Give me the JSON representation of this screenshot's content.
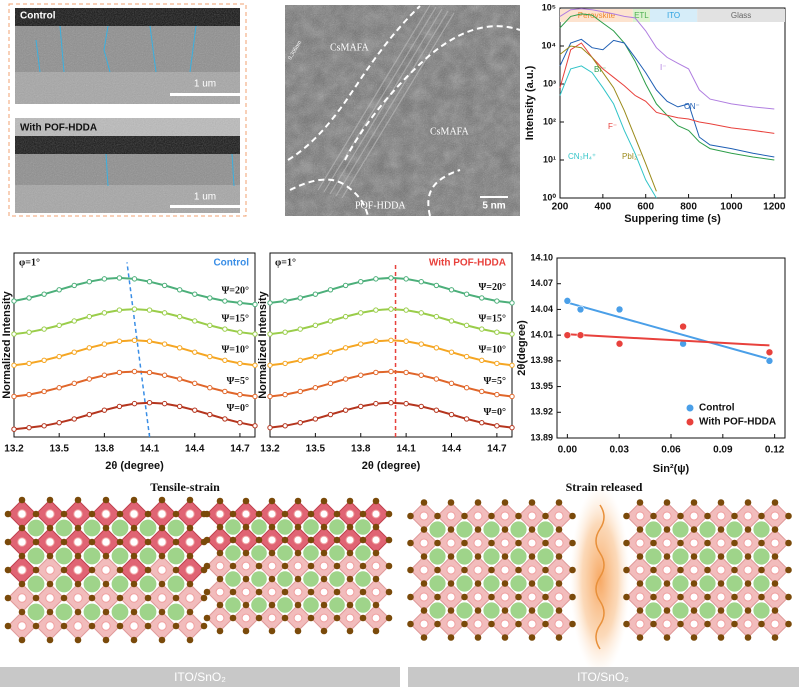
{
  "sem": {
    "top_label": "Control",
    "top_scale": "1 um",
    "bottom_label": "With POF-HDDA",
    "bottom_scale": "1 um"
  },
  "tem": {
    "labels": [
      "CsMAFA",
      "CsMAFA",
      "POF-HDDA"
    ],
    "d_spacing": "0.306nm",
    "scale": "5 nm"
  },
  "chart_data": [
    {
      "type": "line",
      "log_y": true,
      "xlabel": "Suppering time (s)",
      "ylabel": "Intensity (a.u.)",
      "regions": [
        {
          "name": "Perovskite",
          "start": 200,
          "end": 540,
          "color": "#f08a30",
          "background": "#fde3cf"
        },
        {
          "name": "ETL",
          "start": 540,
          "end": 620,
          "color": "#4caf50",
          "background": "#dcf2cf"
        },
        {
          "name": "ITO",
          "start": 620,
          "end": 840,
          "color": "#2aa0e0",
          "background": "#d6edf9"
        },
        {
          "name": "Glass",
          "start": 840,
          "end": 1250,
          "color": "#666666",
          "background": "#e2e2e2"
        }
      ],
      "x": [
        200,
        250,
        300,
        350,
        400,
        450,
        500,
        550,
        600,
        650,
        700,
        750,
        800,
        850,
        900,
        1000,
        1100,
        1200
      ],
      "series": [
        {
          "name": "I⁻",
          "color": "#b07ee0",
          "values": [
            60000,
            90000,
            95000,
            90000,
            80000,
            70000,
            60000,
            55000,
            25000,
            9000,
            5000,
            3500,
            2500,
            700,
            400,
            300,
            250,
            220
          ]
        },
        {
          "name": "Br⁻",
          "color": "#2e9e4a",
          "values": [
            30000,
            60000,
            70000,
            65000,
            40000,
            25000,
            12000,
            4000,
            1000,
            300,
            150,
            80,
            60,
            30,
            20,
            15,
            12,
            10
          ]
        },
        {
          "name": "CN⁻",
          "color": "#1f5fb4",
          "values": [
            3000,
            12000,
            15000,
            9000,
            8000,
            14000,
            12000,
            5000,
            2000,
            700,
            350,
            250,
            300,
            40,
            25,
            20,
            15,
            12
          ]
        },
        {
          "name": "F⁻",
          "color": "#e8413c",
          "values": [
            800,
            8000,
            12000,
            5000,
            2500,
            1500,
            900,
            500,
            350,
            180,
            150,
            130,
            120,
            100,
            90,
            70,
            60,
            50
          ]
        },
        {
          "name": "PbI₂⁻",
          "color": "#9a8a1a",
          "values": [
            6000,
            10000,
            9000,
            5000,
            2000,
            800,
            200,
            40,
            8,
            1.5,
            null,
            null,
            null,
            null,
            null,
            null,
            null,
            null
          ]
        },
        {
          "name": "CN₃H₄⁺",
          "color": "#31c4c8",
          "values": [
            500,
            2500,
            3000,
            2000,
            800,
            300,
            60,
            15,
            3,
            1,
            null,
            null,
            null,
            null,
            null,
            null,
            null,
            null
          ]
        }
      ],
      "xlim": [
        200,
        1250
      ],
      "xticks": [
        200,
        400,
        600,
        800,
        1000,
        1200
      ],
      "ylim": [
        1,
        100000
      ],
      "yticks": [
        {
          "value": 1,
          "label": "10⁰"
        },
        {
          "value": 10,
          "label": "10¹"
        },
        {
          "value": 100,
          "label": "10²"
        },
        {
          "value": 1000,
          "label": "10³"
        },
        {
          "value": 10000,
          "label": "10⁴"
        },
        {
          "value": 100000,
          "label": "10⁵"
        }
      ]
    },
    {
      "type": "line",
      "title": "Control",
      "title_color": "#3a8ee6",
      "annotation": "φ=1°",
      "xlabel": "2θ (degree)",
      "ylabel": "Normalized Intensity",
      "x": [
        13.2,
        13.3,
        13.4,
        13.5,
        13.6,
        13.7,
        13.8,
        13.9,
        14.0,
        14.1,
        14.2,
        14.3,
        14.4,
        14.5,
        14.6,
        14.7,
        14.8
      ],
      "series": [
        {
          "name": "Ψ=0°",
          "color": "#b5351e",
          "values": [
            0.25,
            0.3,
            0.36,
            0.46,
            0.58,
            0.72,
            0.86,
            0.98,
            1.07,
            1.1,
            1.07,
            0.98,
            0.86,
            0.72,
            0.58,
            0.46,
            0.36
          ]
        },
        {
          "name": "Ψ=5°",
          "color": "#e0662a",
          "values": [
            1.3,
            1.36,
            1.46,
            1.58,
            1.72,
            1.86,
            1.98,
            2.07,
            2.1,
            2.07,
            1.98,
            1.86,
            1.72,
            1.58,
            1.46,
            1.36,
            1.3
          ]
        },
        {
          "name": "Ψ=10°",
          "color": "#f5a623",
          "values": [
            2.3,
            2.36,
            2.46,
            2.58,
            2.72,
            2.86,
            2.98,
            3.07,
            3.1,
            3.07,
            2.98,
            2.86,
            2.72,
            2.58,
            2.46,
            2.36,
            2.3
          ]
        },
        {
          "name": "Ψ=15°",
          "color": "#9acd4a",
          "values": [
            3.3,
            3.36,
            3.46,
            3.58,
            3.72,
            3.86,
            3.98,
            4.07,
            4.1,
            4.07,
            3.98,
            3.86,
            3.72,
            3.58,
            3.46,
            3.36,
            3.3
          ]
        },
        {
          "name": "Ψ=20°",
          "color": "#4caf7a",
          "values": [
            4.36,
            4.46,
            4.58,
            4.72,
            4.86,
            4.98,
            5.07,
            5.1,
            5.07,
            4.98,
            4.86,
            4.72,
            4.58,
            4.46,
            4.36,
            4.3,
            4.25
          ]
        }
      ],
      "guide": {
        "x": [
          14.1,
          13.95
        ],
        "y": [
          0,
          5.6
        ],
        "color": "#3a8ee6"
      },
      "xlim": [
        13.2,
        14.8
      ],
      "xticks": [
        13.2,
        13.5,
        13.8,
        14.1,
        14.4,
        14.7
      ],
      "ylim": [
        0,
        5.9
      ]
    },
    {
      "type": "line",
      "title": "With POF-HDDA",
      "title_color": "#e8413c",
      "annotation": "φ=1°",
      "xlabel": "2θ (degree)",
      "ylabel": "Normalized Intensity",
      "x": [
        13.2,
        13.3,
        13.4,
        13.5,
        13.6,
        13.7,
        13.8,
        13.9,
        14.0,
        14.1,
        14.2,
        14.3,
        14.4,
        14.5,
        14.6,
        14.7,
        14.8
      ],
      "series": [
        {
          "name": "Ψ=0°",
          "color": "#b5351e",
          "values": [
            0.3,
            0.36,
            0.46,
            0.58,
            0.72,
            0.86,
            0.98,
            1.07,
            1.1,
            1.07,
            0.98,
            0.86,
            0.72,
            0.58,
            0.46,
            0.36,
            0.3
          ]
        },
        {
          "name": "Ψ=5°",
          "color": "#e0662a",
          "values": [
            1.3,
            1.36,
            1.46,
            1.58,
            1.72,
            1.86,
            1.98,
            2.07,
            2.1,
            2.07,
            1.98,
            1.86,
            1.72,
            1.58,
            1.46,
            1.36,
            1.3
          ]
        },
        {
          "name": "Ψ=10°",
          "color": "#f5a623",
          "values": [
            2.3,
            2.36,
            2.46,
            2.58,
            2.72,
            2.86,
            2.98,
            3.07,
            3.1,
            3.07,
            2.98,
            2.86,
            2.72,
            2.58,
            2.46,
            2.36,
            2.3
          ]
        },
        {
          "name": "Ψ=15°",
          "color": "#9acd4a",
          "values": [
            3.3,
            3.36,
            3.46,
            3.58,
            3.72,
            3.86,
            3.98,
            4.07,
            4.1,
            4.07,
            3.98,
            3.86,
            3.72,
            3.58,
            3.46,
            3.36,
            3.3
          ]
        },
        {
          "name": "Ψ=20°",
          "color": "#4caf7a",
          "values": [
            4.3,
            4.36,
            4.46,
            4.58,
            4.72,
            4.86,
            4.98,
            5.07,
            5.1,
            5.07,
            4.98,
            4.86,
            4.72,
            4.58,
            4.46,
            4.36,
            4.3
          ]
        }
      ],
      "guide": {
        "x": [
          14.03,
          14.03
        ],
        "y": [
          0,
          5.6
        ],
        "color": "#e8413c"
      },
      "xlim": [
        13.2,
        14.8
      ],
      "xticks": [
        13.2,
        13.5,
        13.8,
        14.1,
        14.4,
        14.7
      ],
      "ylim": [
        0,
        5.9
      ]
    },
    {
      "type": "scatter",
      "xlabel": "Sin²(ψ)",
      "ylabel": "2θ(degree)",
      "legend": "lower right",
      "series": [
        {
          "name": "Control",
          "color": "#4a9fe8",
          "x": [
            0,
            0.0076,
            0.0302,
            0.067,
            0.117
          ],
          "values": [
            14.05,
            14.04,
            14.04,
            14.0,
            13.98
          ],
          "fit_x": [
            0,
            0.117
          ],
          "fit_y": [
            14.048,
            13.982
          ]
        },
        {
          "name": "With POF-HDDA",
          "color": "#e8413c",
          "x": [
            0,
            0.0076,
            0.0302,
            0.067,
            0.117
          ],
          "values": [
            14.01,
            14.01,
            14.0,
            14.02,
            13.99
          ],
          "fit_x": [
            0,
            0.117
          ],
          "fit_y": [
            14.011,
            13.998
          ]
        }
      ],
      "xlim": [
        -0.006,
        0.126
      ],
      "xticks": [
        {
          "value": 0,
          "label": "0.00"
        },
        0.03,
        0.06,
        0.09,
        0.12
      ],
      "ylim": [
        13.89,
        14.1
      ],
      "yticks": [
        13.89,
        13.92,
        13.95,
        13.98,
        14.01,
        14.04,
        14.07,
        {
          "value": 14.1,
          "label": "14.10"
        }
      ]
    }
  ],
  "lattice": {
    "left_title": "Tensile-strain",
    "right_title": "Strain released",
    "left_substrate": "ITO/SnO₂",
    "right_substrate": "ITO/SnO₂"
  }
}
